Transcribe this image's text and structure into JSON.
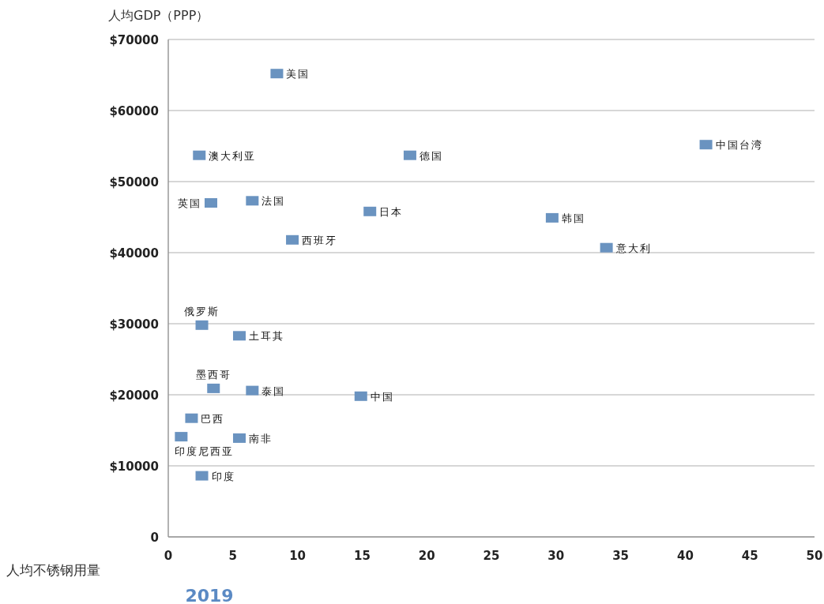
{
  "chart_data": {
    "type": "scatter",
    "ylabel": "人均GDP（PPP）",
    "xlabel": "人均不锈钢用量",
    "annotations": [
      "2019",
      {
        "text": "美国",
        "x": 8.4,
        "y": 65200
      },
      {
        "text": "澳大利亚",
        "x": 2.4,
        "y": 53700
      },
      {
        "text": "德国",
        "x": 18.7,
        "y": 53700
      },
      {
        "text": "中国台湾",
        "x": 41.6,
        "y": 55200
      },
      {
        "text": "英国",
        "x": 3.3,
        "y": 47000
      },
      {
        "text": "法国",
        "x": 6.5,
        "y": 47300
      },
      {
        "text": "日本",
        "x": 15.6,
        "y": 45800
      },
      {
        "text": "韩国",
        "x": 29.7,
        "y": 44900
      },
      {
        "text": "西班牙",
        "x": 9.6,
        "y": 41800
      },
      {
        "text": "意大利",
        "x": 33.9,
        "y": 40700
      },
      {
        "text": "俄罗斯",
        "x": 2.6,
        "y": 29800
      },
      {
        "text": "土耳其",
        "x": 5.5,
        "y": 28300
      },
      {
        "text": "墨西哥",
        "x": 3.5,
        "y": 20900
      },
      {
        "text": "泰国",
        "x": 6.5,
        "y": 20600
      },
      {
        "text": "中国",
        "x": 14.9,
        "y": 19800
      },
      {
        "text": "巴西",
        "x": 1.8,
        "y": 16700
      },
      {
        "text": "印度尼西亚",
        "x": 1.0,
        "y": 14100
      },
      {
        "text": "南非",
        "x": 5.5,
        "y": 13900
      },
      {
        "text": "印度",
        "x": 2.6,
        "y": 8600
      }
    ],
    "x": [
      8.4,
      2.4,
      18.7,
      41.6,
      3.3,
      6.5,
      15.6,
      29.7,
      9.6,
      33.9,
      2.6,
      5.5,
      3.5,
      6.5,
      14.9,
      1.8,
      1.0,
      5.5,
      2.6
    ],
    "values": [
      65200,
      53700,
      53700,
      55200,
      47000,
      47300,
      45800,
      44900,
      41800,
      40700,
      29800,
      28300,
      20900,
      20600,
      19800,
      16700,
      14100,
      13900,
      8600
    ],
    "color": "#6a93c0",
    "marker": "square",
    "grid": "y",
    "xlim": [
      0,
      50
    ],
    "xticks": [
      0,
      5,
      10,
      15,
      20,
      25,
      30,
      35,
      40,
      45,
      50
    ],
    "ylim": [
      0,
      70000
    ],
    "yticks": [
      {
        "value": 0,
        "label": "0"
      },
      {
        "value": 10000,
        "label": "$10000"
      },
      {
        "value": 20000,
        "label": "$20000"
      },
      {
        "value": 30000,
        "label": "$30000"
      },
      {
        "value": 40000,
        "label": "$40000"
      },
      {
        "value": 50000,
        "label": "$50000"
      },
      {
        "value": 60000,
        "label": "$60000"
      },
      {
        "value": 70000,
        "label": "$70000"
      }
    ]
  }
}
